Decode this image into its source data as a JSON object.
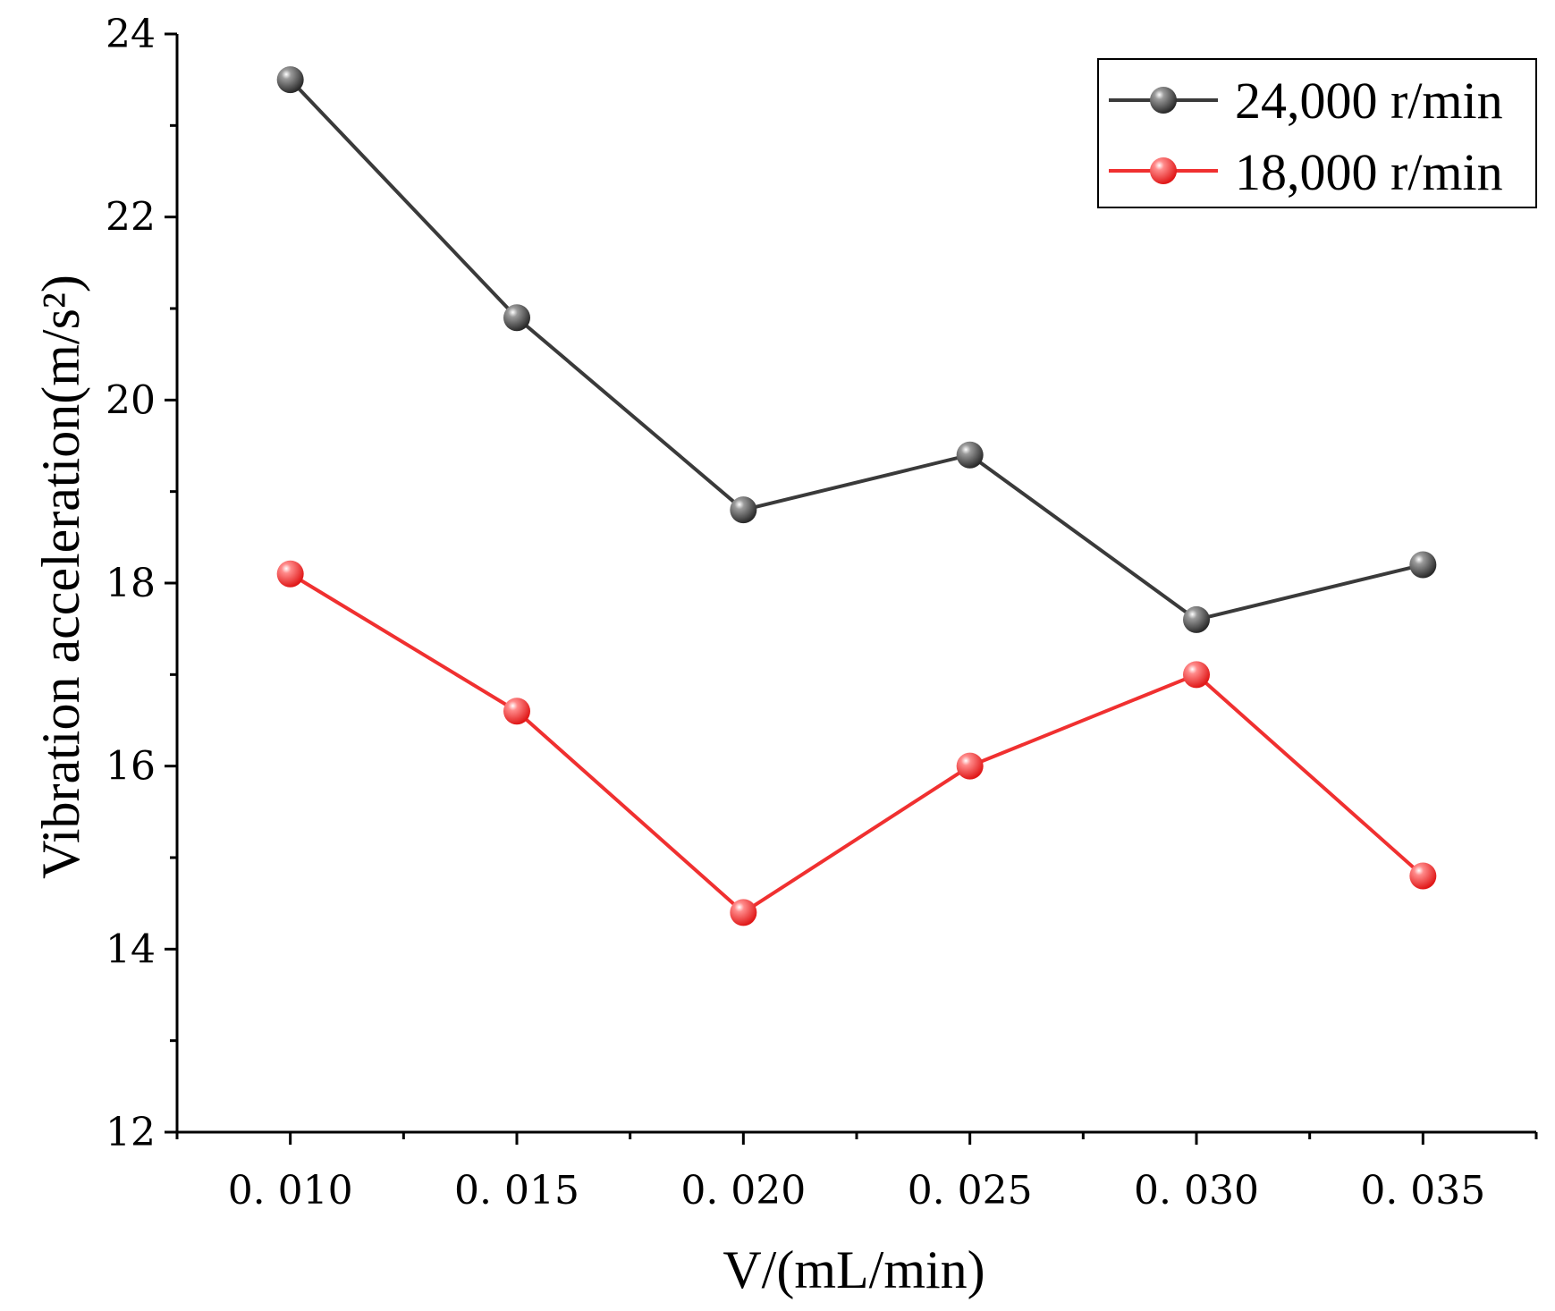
{
  "chart_data": {
    "type": "line",
    "title": "",
    "xlabel": "V/(mL/min)",
    "ylabel": "Vibration acceleration(m/s²)",
    "x": [
      0.01,
      0.015,
      0.02,
      0.025,
      0.03,
      0.035
    ],
    "x_tick_labels": [
      "0. 010",
      "0. 015",
      "0. 020",
      "0. 025",
      "0. 030",
      "0. 035"
    ],
    "xlim": [
      0.0075,
      0.0375
    ],
    "ylim": [
      12,
      24
    ],
    "y_ticks": [
      12,
      14,
      16,
      18,
      20,
      22,
      24
    ],
    "y_tick_labels": [
      "12",
      "14",
      "16",
      "18",
      "20",
      "22",
      "24"
    ],
    "grid": false,
    "legend_position": "top-right",
    "series": [
      {
        "name": "24,000 r/min",
        "color": "#3a3a3a",
        "values": [
          23.5,
          20.9,
          18.8,
          19.4,
          17.6,
          18.2
        ]
      },
      {
        "name": "18,000 r/min",
        "color": "#f03030",
        "values": [
          18.1,
          16.6,
          14.4,
          16.0,
          17.0,
          14.8
        ]
      }
    ]
  }
}
